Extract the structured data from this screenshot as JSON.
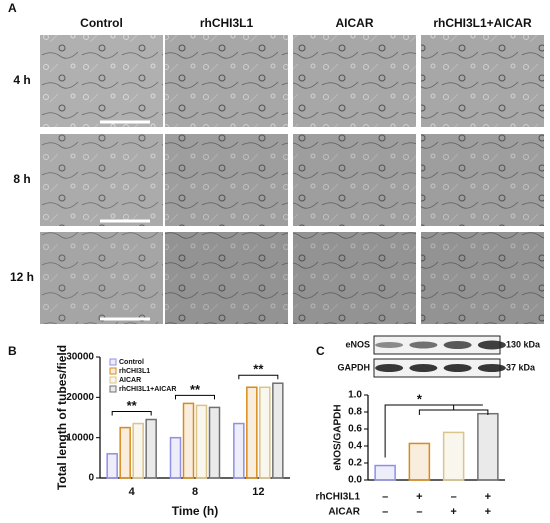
{
  "panel_a": {
    "label": "A",
    "columns": [
      "Control",
      "rhCHI3L1",
      "AICAR",
      "rhCHI3L1+AICAR"
    ],
    "rows": [
      "4 h",
      "8 h",
      "12 h"
    ]
  },
  "chart_data": [
    {
      "type": "bar",
      "panel_label": "B",
      "x_label": "Time (h)",
      "y_label": "Total length of tubes/field",
      "categories": [
        "4",
        "8",
        "12"
      ],
      "series": [
        {
          "name": "Control",
          "color": "#8f8fe6",
          "values": [
            6000,
            10000,
            13500
          ]
        },
        {
          "name": "rhCHI3L1",
          "color": "#d98a1a",
          "values": [
            12500,
            18500,
            22500
          ]
        },
        {
          "name": "AICAR",
          "color": "#d9c48a",
          "values": [
            13500,
            18000,
            22500
          ]
        },
        {
          "name": "rhCHI3L1+AICAR",
          "color": "#707070",
          "values": [
            14500,
            17500,
            23500
          ]
        }
      ],
      "ylim": [
        0,
        30000
      ],
      "yticks": [
        0,
        10000,
        20000,
        30000
      ],
      "annotations": [
        "**",
        "**",
        "**"
      ]
    },
    {
      "type": "bar",
      "panel_label": "C",
      "y_label": "eNOS/GAPDH",
      "values": [
        0.17,
        0.43,
        0.56,
        0.78
      ],
      "colors": [
        "#8f8fe6",
        "#d98a1a",
        "#d9c48a",
        "#707070"
      ],
      "ylim": [
        0,
        1.0
      ],
      "yticks": [
        {
          "value": 0,
          "label": "0.0"
        },
        0.2,
        0.4,
        0.6,
        0.8,
        {
          "value": 1.0,
          "label": "1.0"
        }
      ],
      "conditions": [
        {
          "name": "rhCHI3L1",
          "signs": [
            "–",
            "+",
            "–",
            "+"
          ]
        },
        {
          "name": "AICAR",
          "signs": [
            "–",
            "–",
            "+",
            "+"
          ]
        }
      ],
      "blot": [
        {
          "name": "eNOS",
          "size": "130 kDa"
        },
        {
          "name": "GAPDH",
          "size": "37 kDa"
        }
      ],
      "annotations": [
        "*"
      ]
    }
  ]
}
